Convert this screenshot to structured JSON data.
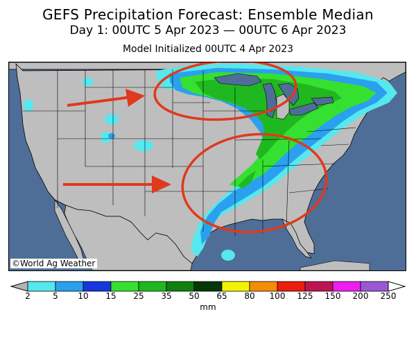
{
  "title": "GEFS Precipitation Forecast: Ensemble Median",
  "period": "Day 1: 00UTC 5 Apr 2023 — 00UTC 6 Apr 2023",
  "init": "Model Initialized 00UTC 4 Apr 2023",
  "credit": "©World Ag Weather",
  "colorbar": {
    "unit": "mm",
    "ticks": [
      "2",
      "5",
      "10",
      "15",
      "25",
      "35",
      "50",
      "65",
      "80",
      "100",
      "125",
      "150",
      "200",
      "250"
    ],
    "colors": [
      "#55e8ee",
      "#2aa0ee",
      "#1637dd",
      "#36e030",
      "#20b820",
      "#108010",
      "#053805",
      "#f3f300",
      "#f58c08",
      "#ec1c10",
      "#bf1450",
      "#ef1ef0",
      "#9a58d6"
    ],
    "under_color": "#b4b4b4",
    "over_color": "#ffffff"
  },
  "colors": {
    "ocean": "#4e6e98",
    "land": "#bebebe",
    "border": "#000000",
    "annotation": "#e0391d"
  }
}
